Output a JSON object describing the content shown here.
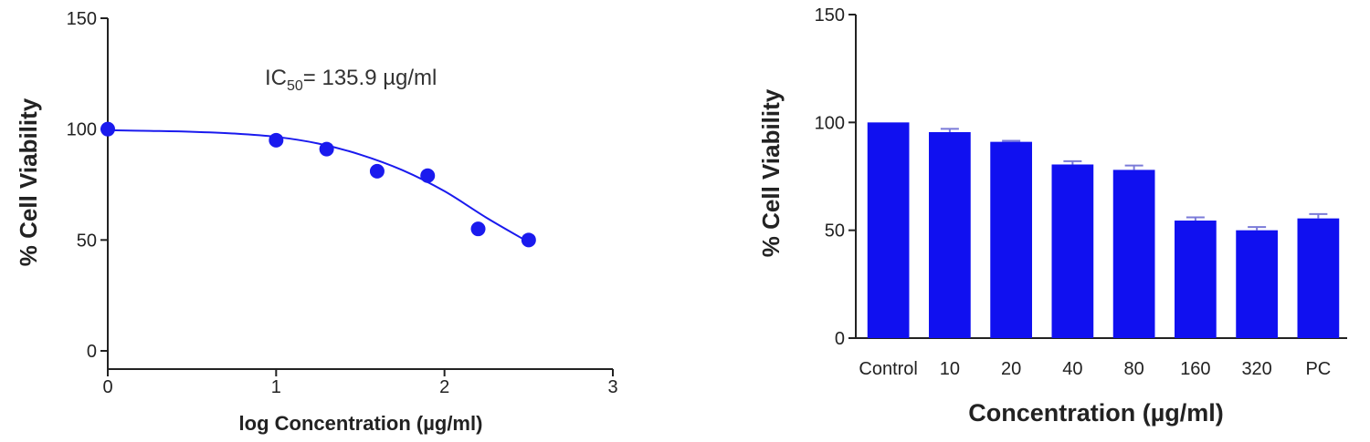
{
  "chart_data": [
    {
      "type": "scatter",
      "xlabel": "log Concentration (µg/ml)",
      "ylabel": "%  Cell Viability",
      "xlim": [
        0,
        3
      ],
      "ylim": [
        0,
        150
      ],
      "xticks": [
        0,
        1,
        2,
        3
      ],
      "yticks": [
        0,
        50,
        100,
        150
      ],
      "grid": false,
      "annotation": {
        "prefix": "IC",
        "subscript": "50",
        "suffix": "= 135.9 µg/ml"
      },
      "series": [
        {
          "points": [
            {
              "x": 0.0,
              "y": 100
            },
            {
              "x": 1.0,
              "y": 95
            },
            {
              "x": 1.3,
              "y": 91
            },
            {
              "x": 1.6,
              "y": 81
            },
            {
              "x": 1.9,
              "y": 79
            },
            {
              "x": 2.2,
              "y": 55
            },
            {
              "x": 2.5,
              "y": 50
            }
          ],
          "fit_curve": [
            {
              "x": 0.0,
              "y": 99.5
            },
            {
              "x": 0.25,
              "y": 99.2
            },
            {
              "x": 0.5,
              "y": 98.8
            },
            {
              "x": 0.75,
              "y": 98
            },
            {
              "x": 1.0,
              "y": 96.5
            },
            {
              "x": 1.25,
              "y": 93.5
            },
            {
              "x": 1.5,
              "y": 88.5
            },
            {
              "x": 1.75,
              "y": 81.5
            },
            {
              "x": 2.0,
              "y": 72
            },
            {
              "x": 2.25,
              "y": 60
            },
            {
              "x": 2.5,
              "y": 49
            }
          ],
          "color": "#1a1aee"
        }
      ]
    },
    {
      "type": "bar",
      "xlabel": "Concentration (µg/ml)",
      "ylabel": "%  Cell Viability",
      "ylim": [
        0,
        150
      ],
      "yticks": [
        0,
        50,
        100,
        150
      ],
      "grid": false,
      "categories": [
        "Control",
        "10",
        "20",
        "40",
        "80",
        "160",
        "320",
        "PC"
      ],
      "values": [
        100,
        95.5,
        91,
        80.5,
        78,
        54.5,
        50,
        55.5
      ],
      "errors": [
        0,
        1.5,
        0.5,
        1.5,
        2,
        1.5,
        1.5,
        2
      ],
      "color": "#1010f0",
      "error_color": "#7a7ad8"
    }
  ]
}
